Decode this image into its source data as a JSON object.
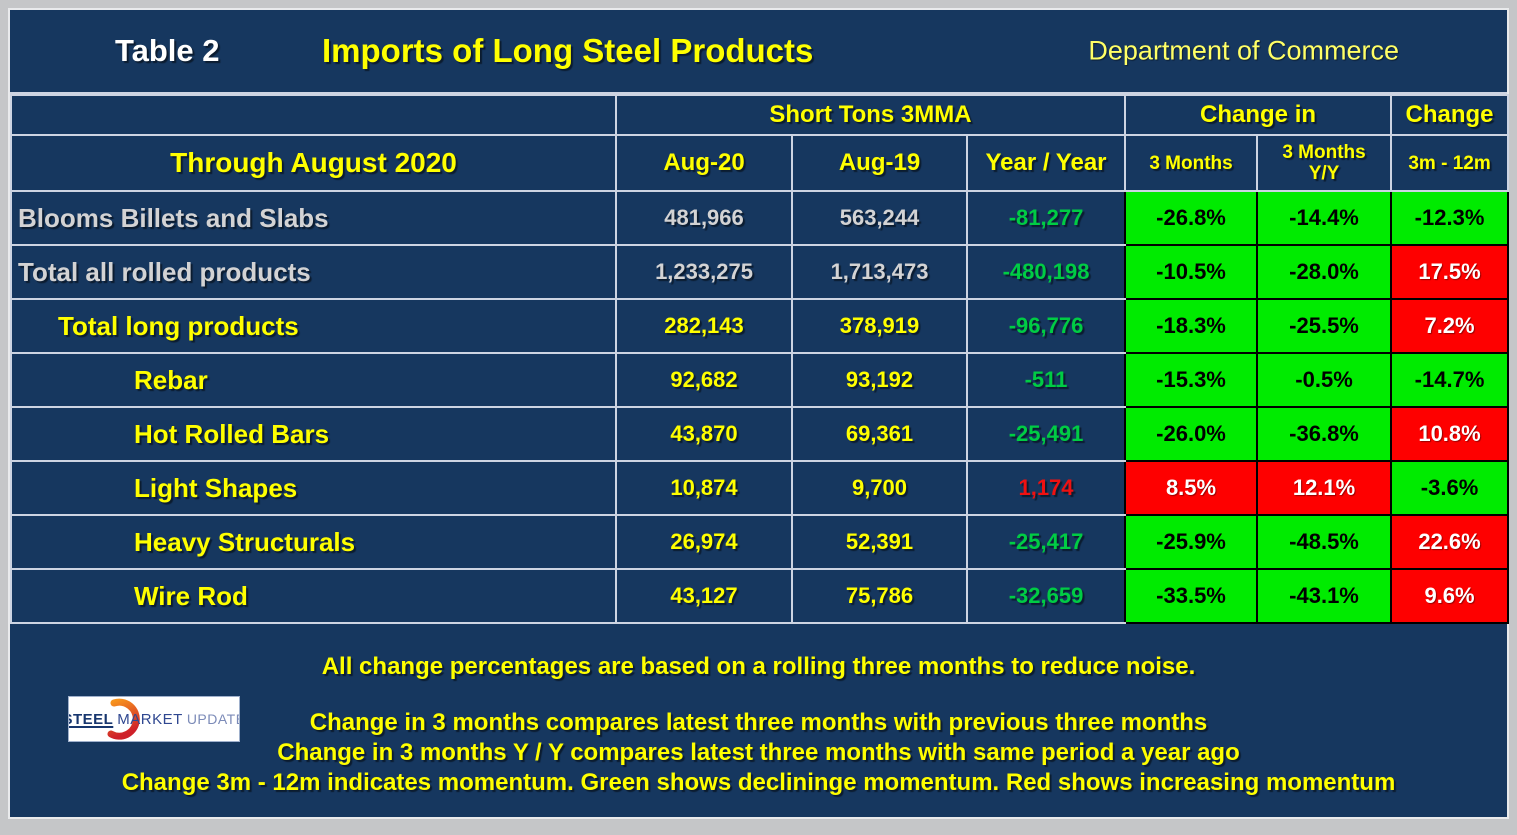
{
  "title": {
    "table_label": "Table 2",
    "main": "Imports of Long Steel Products",
    "source": "Department of Commerce"
  },
  "chart_data": {
    "type": "table",
    "period_label": "Through August 2020",
    "column_groups": [
      {
        "label": "Short Tons 3MMA",
        "span": 3
      },
      {
        "label": "Change in",
        "span": 2
      },
      {
        "label": "Change",
        "span": 1
      }
    ],
    "columns": {
      "aug20": "Aug-20",
      "aug19": "Aug-19",
      "yoy": "Year / Year",
      "chg_3m": "3 Months",
      "chg_3m_yy": "3 Months\nY/Y",
      "chg_3m_12m": "3m - 12m"
    },
    "rows": [
      {
        "label": "Blooms Billets and Slabs",
        "indent": 0,
        "tone": "gray",
        "aug20": "481,966",
        "aug19": "563,244",
        "yoy": "-81,277",
        "yoy_tone": "green",
        "chg_3m": {
          "text": "-26.8%",
          "bg": "green"
        },
        "chg_3m_yy": {
          "text": "-14.4%",
          "bg": "green"
        },
        "chg_3m_12m": {
          "text": "-12.3%",
          "bg": "green"
        }
      },
      {
        "label": "Total all rolled products",
        "indent": 0,
        "tone": "gray",
        "aug20": "1,233,275",
        "aug19": "1,713,473",
        "yoy": "-480,198",
        "yoy_tone": "green",
        "chg_3m": {
          "text": "-10.5%",
          "bg": "green"
        },
        "chg_3m_yy": {
          "text": "-28.0%",
          "bg": "green"
        },
        "chg_3m_12m": {
          "text": "17.5%",
          "bg": "red"
        }
      },
      {
        "label": "Total long products",
        "indent": 1,
        "tone": "yellow",
        "aug20": "282,143",
        "aug19": "378,919",
        "yoy": "-96,776",
        "yoy_tone": "green",
        "chg_3m": {
          "text": "-18.3%",
          "bg": "green"
        },
        "chg_3m_yy": {
          "text": "-25.5%",
          "bg": "green"
        },
        "chg_3m_12m": {
          "text": "7.2%",
          "bg": "red"
        }
      },
      {
        "label": "Rebar",
        "indent": 2,
        "tone": "yellow",
        "aug20": "92,682",
        "aug19": "93,192",
        "yoy": "-511",
        "yoy_tone": "green",
        "chg_3m": {
          "text": "-15.3%",
          "bg": "green"
        },
        "chg_3m_yy": {
          "text": "-0.5%",
          "bg": "green"
        },
        "chg_3m_12m": {
          "text": "-14.7%",
          "bg": "green"
        }
      },
      {
        "label": "Hot Rolled Bars",
        "indent": 2,
        "tone": "yellow",
        "aug20": "43,870",
        "aug19": "69,361",
        "yoy": "-25,491",
        "yoy_tone": "green",
        "chg_3m": {
          "text": "-26.0%",
          "bg": "green"
        },
        "chg_3m_yy": {
          "text": "-36.8%",
          "bg": "green"
        },
        "chg_3m_12m": {
          "text": "10.8%",
          "bg": "red"
        }
      },
      {
        "label": "Light Shapes",
        "indent": 2,
        "tone": "yellow",
        "aug20": "10,874",
        "aug19": "9,700",
        "yoy": "1,174",
        "yoy_tone": "red",
        "chg_3m": {
          "text": "8.5%",
          "bg": "red"
        },
        "chg_3m_yy": {
          "text": "12.1%",
          "bg": "red"
        },
        "chg_3m_12m": {
          "text": "-3.6%",
          "bg": "green"
        }
      },
      {
        "label": "Heavy Structurals",
        "indent": 2,
        "tone": "yellow",
        "aug20": "26,974",
        "aug19": "52,391",
        "yoy": "-25,417",
        "yoy_tone": "green",
        "chg_3m": {
          "text": "-25.9%",
          "bg": "green"
        },
        "chg_3m_yy": {
          "text": "-48.5%",
          "bg": "green"
        },
        "chg_3m_12m": {
          "text": "22.6%",
          "bg": "red"
        }
      },
      {
        "label": "Wire Rod",
        "indent": 2,
        "tone": "yellow",
        "aug20": "43,127",
        "aug19": "75,786",
        "yoy": "-32,659",
        "yoy_tone": "green",
        "chg_3m": {
          "text": "-33.5%",
          "bg": "green"
        },
        "chg_3m_yy": {
          "text": "-43.1%",
          "bg": "green"
        },
        "chg_3m_12m": {
          "text": "9.6%",
          "bg": "red"
        }
      }
    ]
  },
  "notes": [
    "All change percentages are based on a rolling three months to reduce noise.",
    "Change in 3 months compares latest three months with previous three months",
    "Change in 3 months  Y / Y compares latest three months with same period a year ago",
    "Change 3m - 12m indicates momentum. Green shows declininge momentum. Red shows increasing momentum"
  ],
  "logo": {
    "steel": "STEEL",
    "market": "MARKET",
    "update": "UPDATE"
  },
  "colors": {
    "background": "#16375F",
    "frame": "#C5C6C8",
    "grid_line": "#CDD4E2",
    "green_cell": "#00EB00",
    "red_cell": "#FE0000",
    "yellow_text": "#FFFF00",
    "gray_text": "#D3D3D4",
    "green_text": "#00CC44",
    "red_text": "#EE1111"
  }
}
